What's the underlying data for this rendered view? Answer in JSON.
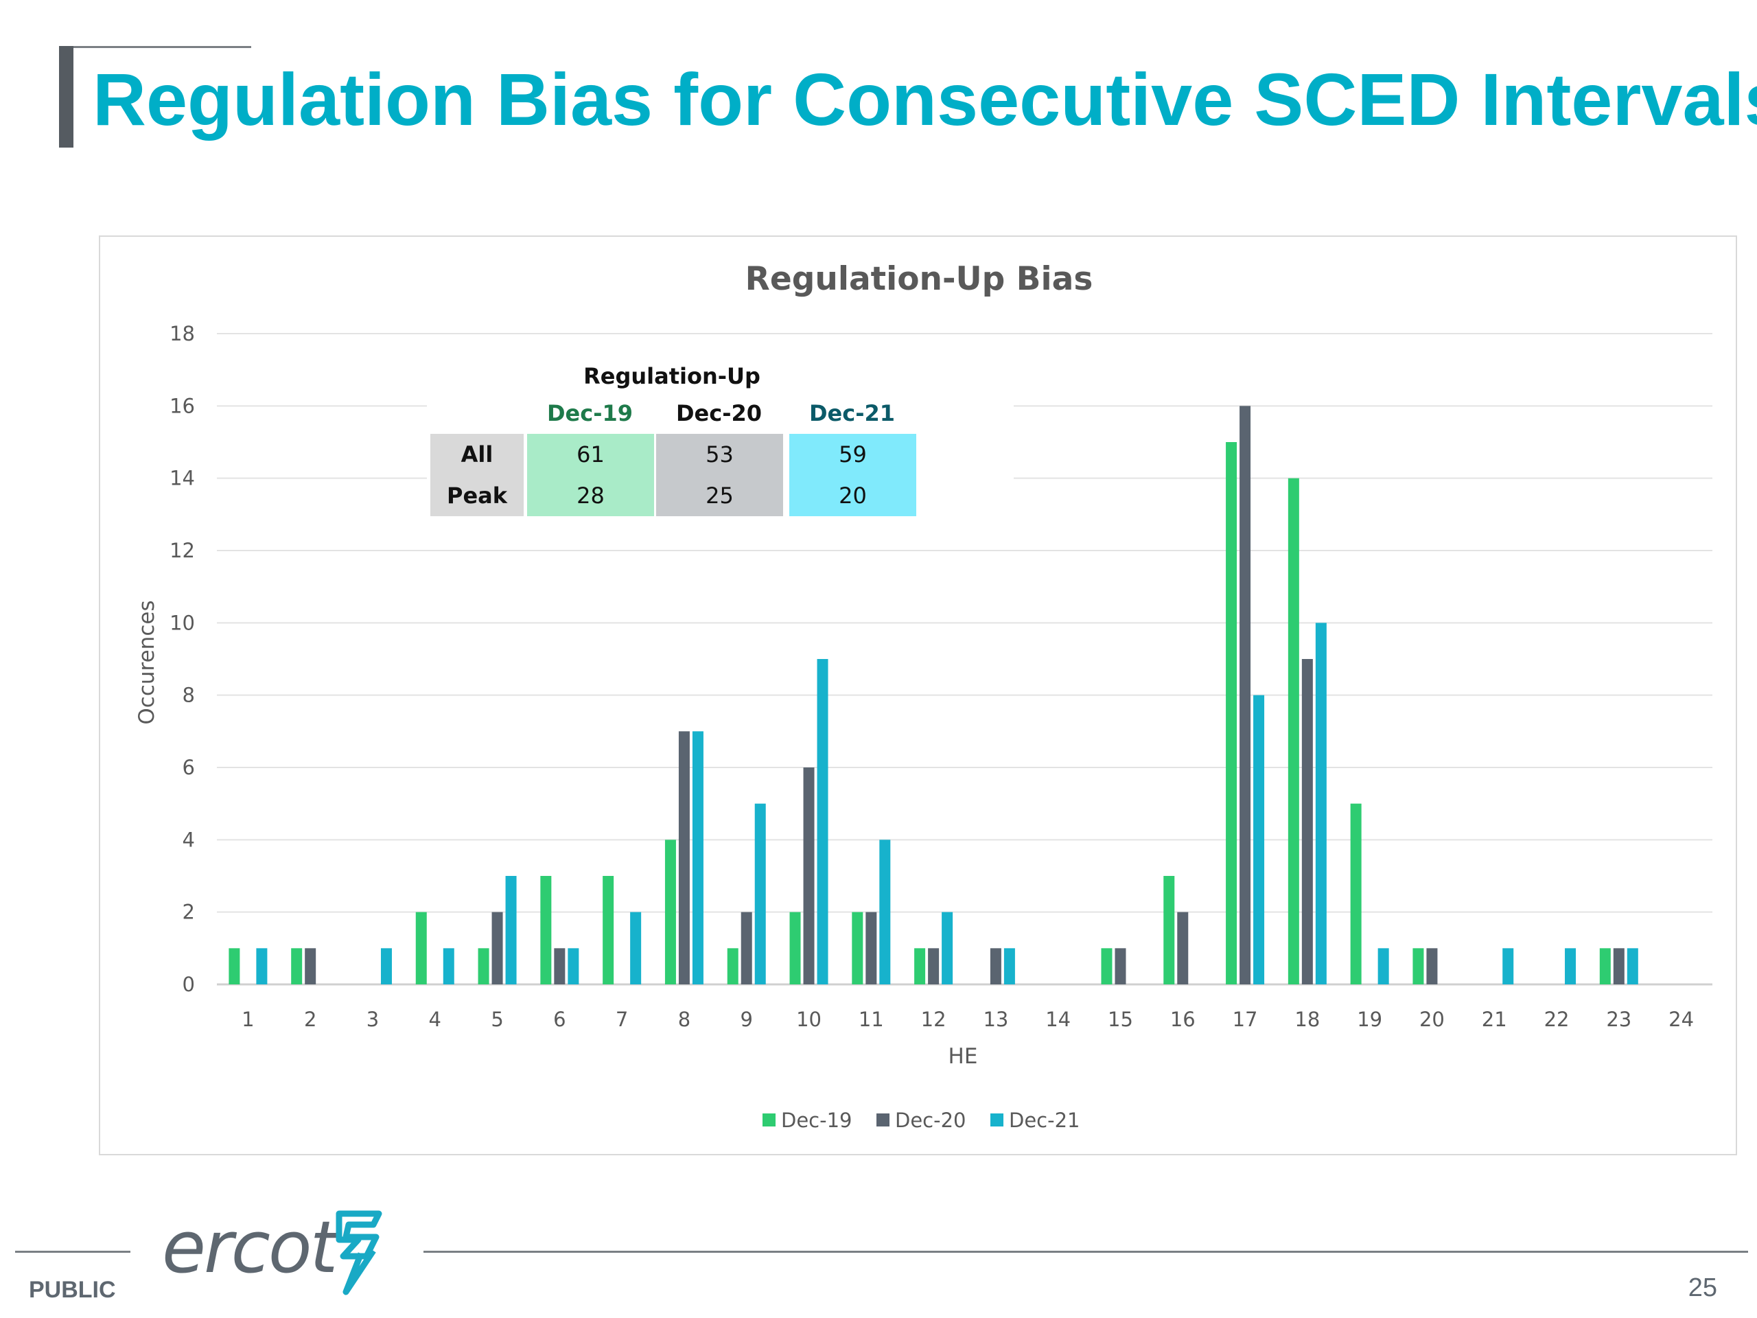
{
  "slide": {
    "title": "Regulation Bias for Consecutive SCED Intervals",
    "footer_label": "PUBLIC",
    "page_number": "25",
    "logo_text": "ercot"
  },
  "colors": {
    "title": "#00aec7",
    "dec19": "#2ecc71",
    "dec20": "#5a6470",
    "dec21": "#17b2cc",
    "table_dec19_fill": "#a9ebc8",
    "table_dec20_fill": "#c6c9cc",
    "table_dec21_fill": "#80eafc",
    "table_label_fill": "#d9d9d9"
  },
  "summary_table": {
    "title": "Regulation-Up",
    "columns": [
      "Dec-19",
      "Dec-20",
      "Dec-21"
    ],
    "rows": [
      {
        "label": "All",
        "values": [
          "61",
          "53",
          "59"
        ]
      },
      {
        "label": "Peak",
        "values": [
          "28",
          "25",
          "20"
        ]
      }
    ]
  },
  "chart_data": {
    "type": "bar",
    "title": "Regulation-Up Bias",
    "xlabel": "HE",
    "ylabel": "Occurences",
    "ylim": [
      0,
      18
    ],
    "yticks": [
      "0",
      "2",
      "4",
      "6",
      "8",
      "10",
      "12",
      "14",
      "16",
      "18"
    ],
    "grid": true,
    "legend_position": "bottom",
    "categories": [
      "1",
      "2",
      "3",
      "4",
      "5",
      "6",
      "7",
      "8",
      "9",
      "10",
      "11",
      "12",
      "13",
      "14",
      "15",
      "16",
      "17",
      "18",
      "19",
      "20",
      "21",
      "22",
      "23",
      "24"
    ],
    "series": [
      {
        "name": "Dec-19",
        "values": [
          1,
          1,
          0,
          2,
          1,
          3,
          3,
          4,
          1,
          2,
          2,
          1,
          0,
          0,
          1,
          3,
          15,
          14,
          5,
          1,
          0,
          0,
          1,
          0
        ]
      },
      {
        "name": "Dec-20",
        "values": [
          0,
          1,
          0,
          0,
          2,
          1,
          0,
          7,
          2,
          6,
          2,
          1,
          1,
          0,
          1,
          2,
          16,
          9,
          0,
          1,
          0,
          0,
          1,
          0
        ]
      },
      {
        "name": "Dec-21",
        "values": [
          1,
          0,
          1,
          1,
          3,
          1,
          2,
          7,
          5,
          9,
          4,
          2,
          1,
          0,
          0,
          0,
          8,
          10,
          1,
          0,
          1,
          1,
          1,
          0
        ]
      }
    ]
  }
}
